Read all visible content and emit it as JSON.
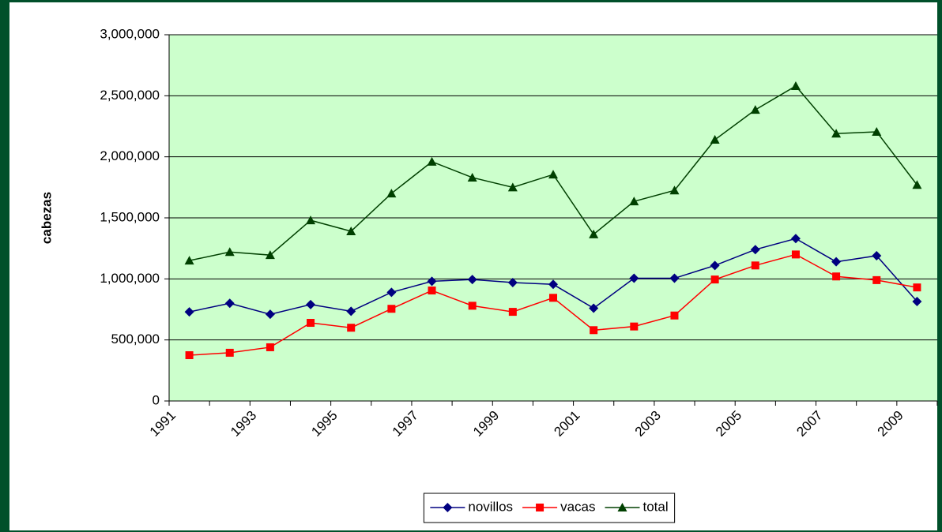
{
  "chart_data": {
    "type": "line",
    "y_label": "cabezas",
    "categories": [
      "1991",
      null,
      "1993",
      null,
      "1995",
      null,
      "1997",
      null,
      "1999",
      null,
      "2001",
      null,
      "2003",
      null,
      "2005",
      null,
      "2007",
      null,
      "2009"
    ],
    "series": [
      {
        "name": "novillos",
        "color": "#000080",
        "marker": "diamond",
        "values": [
          730000,
          800000,
          710000,
          790000,
          735000,
          890000,
          980000,
          995000,
          970000,
          955000,
          760000,
          1005000,
          1005000,
          1110000,
          1240000,
          1330000,
          1140000,
          1190000,
          815000
        ]
      },
      {
        "name": "vacas",
        "color": "#ff0000",
        "marker": "square",
        "values": [
          375000,
          395000,
          440000,
          640000,
          600000,
          755000,
          905000,
          780000,
          730000,
          845000,
          580000,
          610000,
          700000,
          995000,
          1110000,
          1200000,
          1020000,
          990000,
          930000
        ]
      },
      {
        "name": "total",
        "color": "#004000",
        "marker": "triangle",
        "values": [
          1150000,
          1220000,
          1195000,
          1480000,
          1390000,
          1700000,
          1960000,
          1830000,
          1750000,
          1855000,
          1365000,
          1635000,
          1725000,
          2140000,
          2385000,
          2580000,
          2190000,
          2205000,
          1770000
        ]
      }
    ],
    "ylim": [
      0,
      3000000
    ],
    "yticks": [
      0,
      {
        "value": 500000,
        "label": "500,000"
      },
      {
        "value": 1000000,
        "label": "1,000,000"
      },
      {
        "value": 1500000,
        "label": "1,500,000"
      },
      {
        "value": 2000000,
        "label": "2,000,000"
      },
      {
        "value": 2500000,
        "label": "2,500,000"
      },
      {
        "value": 3000000,
        "label": "3,000,000"
      }
    ],
    "grid": true,
    "plot_background": "#ccffcc",
    "legend": "bottom"
  }
}
